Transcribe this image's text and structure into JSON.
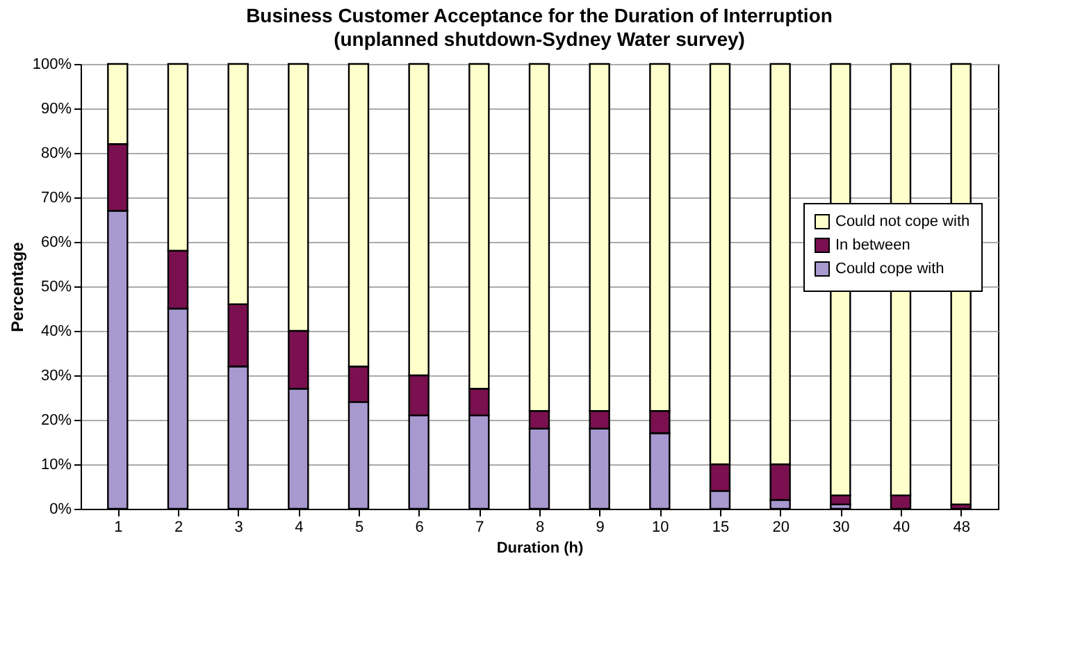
{
  "chart_data": {
    "type": "bar",
    "stacked": true,
    "title": "Business Customer Acceptance for the Duration of Interruption",
    "subtitle": "(unplanned shutdown-Sydney Water survey)",
    "xlabel": "Duration (h)",
    "ylabel": "Percentage",
    "categories": [
      "1",
      "2",
      "3",
      "4",
      "5",
      "6",
      "7",
      "8",
      "9",
      "10",
      "15",
      "20",
      "30",
      "40",
      "48"
    ],
    "series": [
      {
        "name": "Could cope with",
        "color": "#a899d0",
        "values": [
          67,
          45,
          32,
          27,
          24,
          21,
          21,
          18,
          18,
          17,
          4,
          2,
          1,
          0,
          0
        ]
      },
      {
        "name": "In between",
        "color": "#7a1050",
        "values": [
          15,
          13,
          14,
          13,
          8,
          9,
          6,
          4,
          4,
          5,
          6,
          8,
          2,
          3,
          1
        ]
      },
      {
        "name": "Could not cope with",
        "color": "#ffffcc",
        "values": [
          18,
          42,
          54,
          60,
          68,
          70,
          73,
          78,
          78,
          78,
          90,
          90,
          97,
          97,
          99
        ]
      }
    ],
    "ylim": [
      0,
      100
    ],
    "yticks": [
      {
        "value": 0,
        "label": "0%"
      },
      {
        "value": 10,
        "label": "10%"
      },
      {
        "value": 20,
        "label": "20%"
      },
      {
        "value": 30,
        "label": "30%"
      },
      {
        "value": 40,
        "label": "40%"
      },
      {
        "value": 50,
        "label": "50%"
      },
      {
        "value": 60,
        "label": "60%"
      },
      {
        "value": 70,
        "label": "70%"
      },
      {
        "value": 80,
        "label": "80%"
      },
      {
        "value": 90,
        "label": "90%"
      },
      {
        "value": 100,
        "label": "100%"
      }
    ],
    "grid": "y",
    "legend": "right"
  }
}
